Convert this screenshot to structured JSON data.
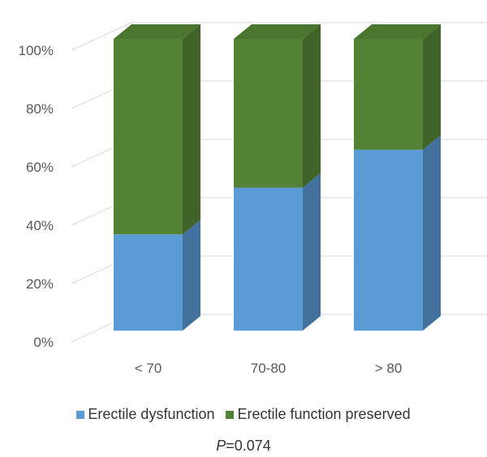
{
  "chart_data": {
    "type": "bar",
    "stacked": true,
    "three_d": true,
    "percent_stacked": true,
    "categories": [
      "< 70",
      "70-80",
      "> 80"
    ],
    "series": [
      {
        "name": "Erectile dysfunction",
        "values": [
          33,
          49,
          62
        ]
      },
      {
        "name": "Erectile function preserved",
        "values": [
          67,
          51,
          38
        ]
      }
    ],
    "ylim": [
      0,
      100
    ],
    "yticks": [
      "0%",
      "20%",
      "40%",
      "60%",
      "80%",
      "100%"
    ],
    "grid": true,
    "legend_position": "bottom",
    "colors": {
      "series_front": [
        "#5b9bd5",
        "#548235"
      ],
      "series_side": [
        "#41719c",
        "#3f6328"
      ],
      "series_top": [
        "#5b9bd5",
        "#4a752e"
      ],
      "grid": "#d9d9d9",
      "tick_label": "#595959"
    }
  },
  "legend": {
    "items": [
      {
        "label": "Erectile dysfunction",
        "color": "#5b9bd5"
      },
      {
        "label": "Erectile function preserved",
        "color": "#548235"
      }
    ]
  },
  "footer": {
    "p_var": "P",
    "p_rest": "=0.074"
  }
}
